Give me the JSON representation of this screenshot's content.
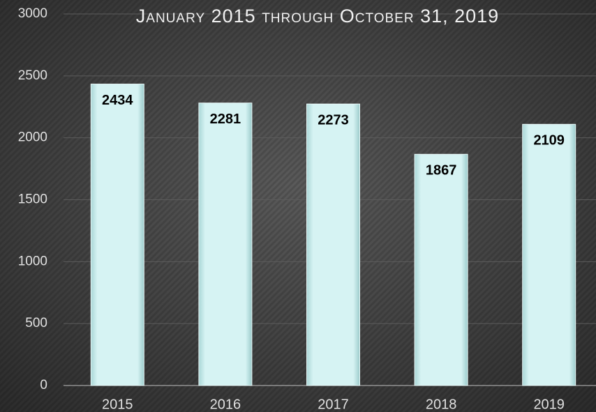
{
  "chart_data": {
    "type": "bar",
    "title": "January 2015 through October 31, 2019",
    "categories": [
      "2015",
      "2016",
      "2017",
      "2018",
      "2019"
    ],
    "values": [
      2434,
      2281,
      2273,
      1867,
      2109
    ],
    "color": "#cdeeee",
    "ylim": [
      0,
      3000
    ],
    "yticks": [
      0,
      500,
      1000,
      1500,
      2000,
      2500,
      3000
    ],
    "grid": true
  }
}
